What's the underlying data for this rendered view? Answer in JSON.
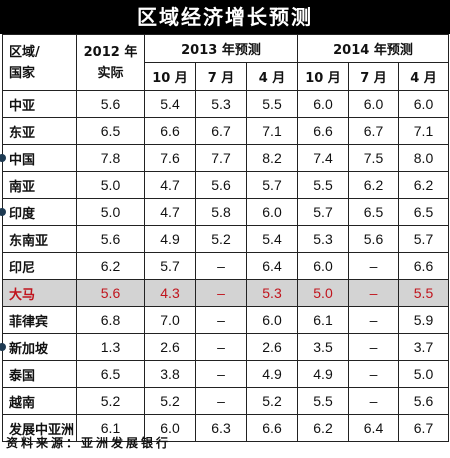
{
  "title": "区域经济增长预测",
  "header": {
    "region_label": "区域/\n国家",
    "year2012_label": "2012 年\n实际",
    "group2013": "2013 年预测",
    "group2014": "2014 年预测",
    "months2013": [
      "10 月",
      "7 月",
      "4 月"
    ],
    "months2014": [
      "10 月",
      "7 月",
      "4 月"
    ]
  },
  "rows": [
    {
      "name": "中亚",
      "values": [
        "5.6",
        "5.4",
        "5.3",
        "5.5",
        "6.0",
        "6.0",
        "6.0"
      ]
    },
    {
      "name": "东亚",
      "values": [
        "6.5",
        "6.6",
        "6.7",
        "7.1",
        "6.6",
        "6.7",
        "7.1"
      ]
    },
    {
      "name": "中国",
      "values": [
        "7.8",
        "7.6",
        "7.7",
        "8.2",
        "7.4",
        "7.5",
        "8.0"
      ]
    },
    {
      "name": "南亚",
      "values": [
        "5.0",
        "4.7",
        "5.6",
        "5.7",
        "5.5",
        "6.2",
        "6.2"
      ]
    },
    {
      "name": "印度",
      "values": [
        "5.0",
        "4.7",
        "5.8",
        "6.0",
        "5.7",
        "6.5",
        "6.5"
      ]
    },
    {
      "name": "东南亚",
      "values": [
        "5.6",
        "4.9",
        "5.2",
        "5.4",
        "5.3",
        "5.6",
        "5.7"
      ]
    },
    {
      "name": "印尼",
      "values": [
        "6.2",
        "5.7",
        "–",
        "6.4",
        "6.0",
        "–",
        "6.6"
      ]
    },
    {
      "name": "大马",
      "values": [
        "5.6",
        "4.3",
        "–",
        "5.3",
        "5.0",
        "–",
        "5.5"
      ]
    },
    {
      "name": "菲律宾",
      "values": [
        "6.8",
        "7.0",
        "–",
        "6.0",
        "6.1",
        "–",
        "5.9"
      ]
    },
    {
      "name": "新加坡",
      "values": [
        "1.3",
        "2.6",
        "–",
        "2.6",
        "3.5",
        "–",
        "3.7"
      ]
    },
    {
      "name": "泰国",
      "values": [
        "6.5",
        "3.8",
        "–",
        "4.9",
        "4.9",
        "–",
        "5.0"
      ]
    },
    {
      "name": "越南",
      "values": [
        "5.2",
        "5.2",
        "–",
        "5.2",
        "5.5",
        "–",
        "5.6"
      ]
    },
    {
      "name": "发展中亚洲",
      "values": [
        "6.1",
        "6.0",
        "6.3",
        "6.6",
        "6.2",
        "6.4",
        "6.7"
      ]
    }
  ],
  "source": "资料来源：亚洲发展银行",
  "colors": {
    "highlight_bg": "#d3d3d3",
    "highlight_text": "#c0141d",
    "bullet": "#1e3a52"
  }
}
